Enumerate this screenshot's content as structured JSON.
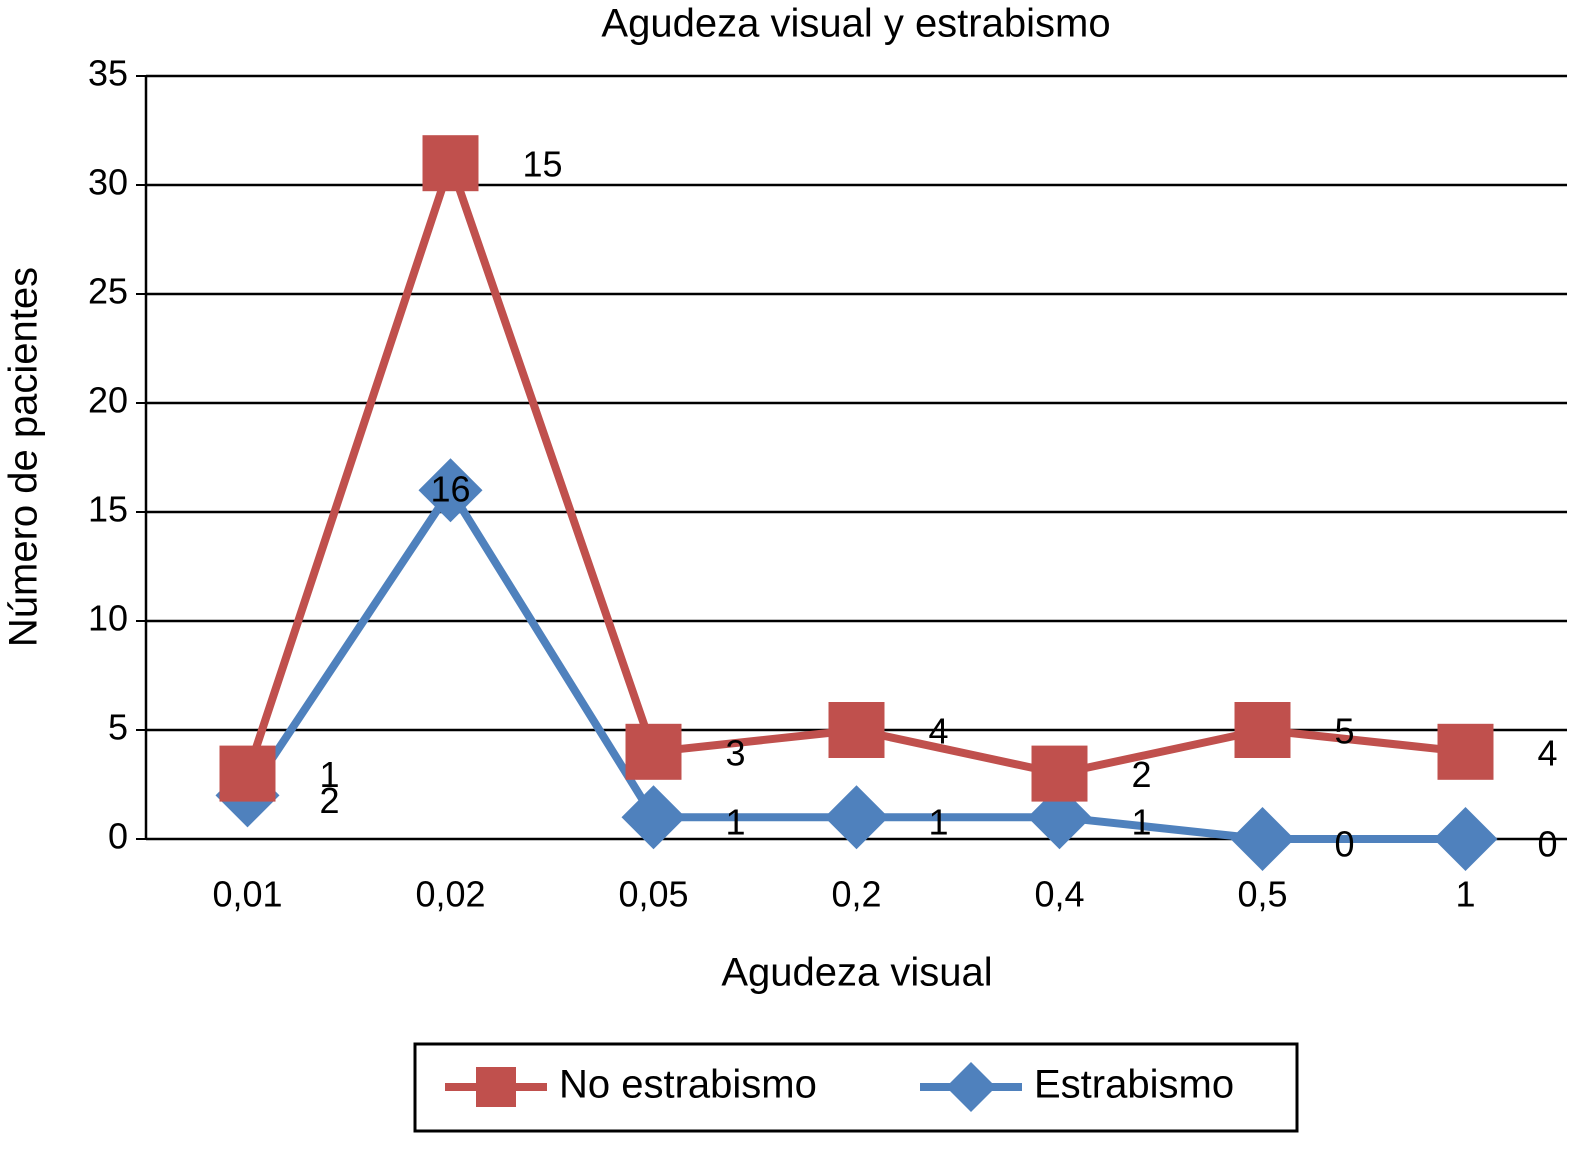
{
  "chart_data": {
    "type": "line",
    "stacked": true,
    "title": "Agudeza visual y estrabismo",
    "x_label": "Agudeza visual",
    "y_label": "Número de pacientes",
    "categories": [
      "0,01",
      "0,02",
      "0,05",
      "0,2",
      "0,4",
      "0,5",
      "1"
    ],
    "series": [
      {
        "name": "No estrabismo",
        "color": "#c0504d",
        "marker": "square",
        "values": [
          1,
          15,
          3,
          4,
          2,
          5,
          4
        ]
      },
      {
        "name": "Estrabismo",
        "color": "#4f81bd",
        "marker": "diamond",
        "values": [
          2,
          16,
          1,
          1,
          1,
          0,
          0
        ]
      }
    ],
    "ylim": [
      0,
      35
    ],
    "yticks": [
      0,
      5,
      10,
      15,
      20,
      25,
      30,
      35
    ],
    "grid": true,
    "legend": "bottom"
  }
}
